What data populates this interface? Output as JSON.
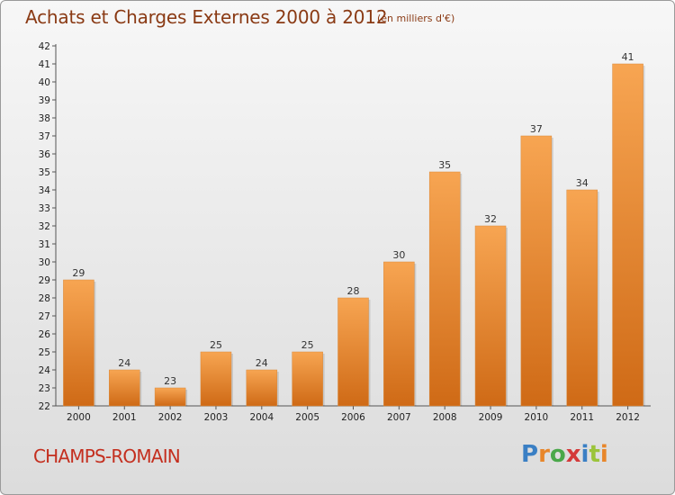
{
  "header": {
    "title": "Achats et Charges Externes 2000 à 2012",
    "unit": "(en milliers d'€)"
  },
  "footer": {
    "place": "CHAMPS-ROMAIN",
    "logo_text": "Proxiti",
    "logo_colors": [
      "#3a7fc4",
      "#e8862a",
      "#4aa84a",
      "#d43a3a",
      "#3a7fc4",
      "#9bc43a",
      "#e8862a"
    ]
  },
  "colors": {
    "bar_light": "#f7a552",
    "bar_dark": "#cf6a16",
    "title": "#8a3a14",
    "place": "#c42f1f"
  },
  "chart_data": {
    "type": "bar",
    "title": "Achats et Charges Externes 2000 à 2012",
    "subtitle": "(en milliers d'€)",
    "categories": [
      "2000",
      "2001",
      "2002",
      "2003",
      "2004",
      "2005",
      "2006",
      "2007",
      "2008",
      "2009",
      "2010",
      "2011",
      "2012"
    ],
    "values": [
      29,
      24,
      23,
      25,
      24,
      25,
      28,
      30,
      35,
      32,
      37,
      34,
      41
    ],
    "ylim": [
      22,
      42
    ],
    "yticks": [
      22,
      23,
      24,
      25,
      26,
      27,
      28,
      29,
      30,
      31,
      32,
      33,
      34,
      35,
      36,
      37,
      38,
      39,
      40,
      41,
      42
    ],
    "grid": false,
    "data_labels": true
  }
}
